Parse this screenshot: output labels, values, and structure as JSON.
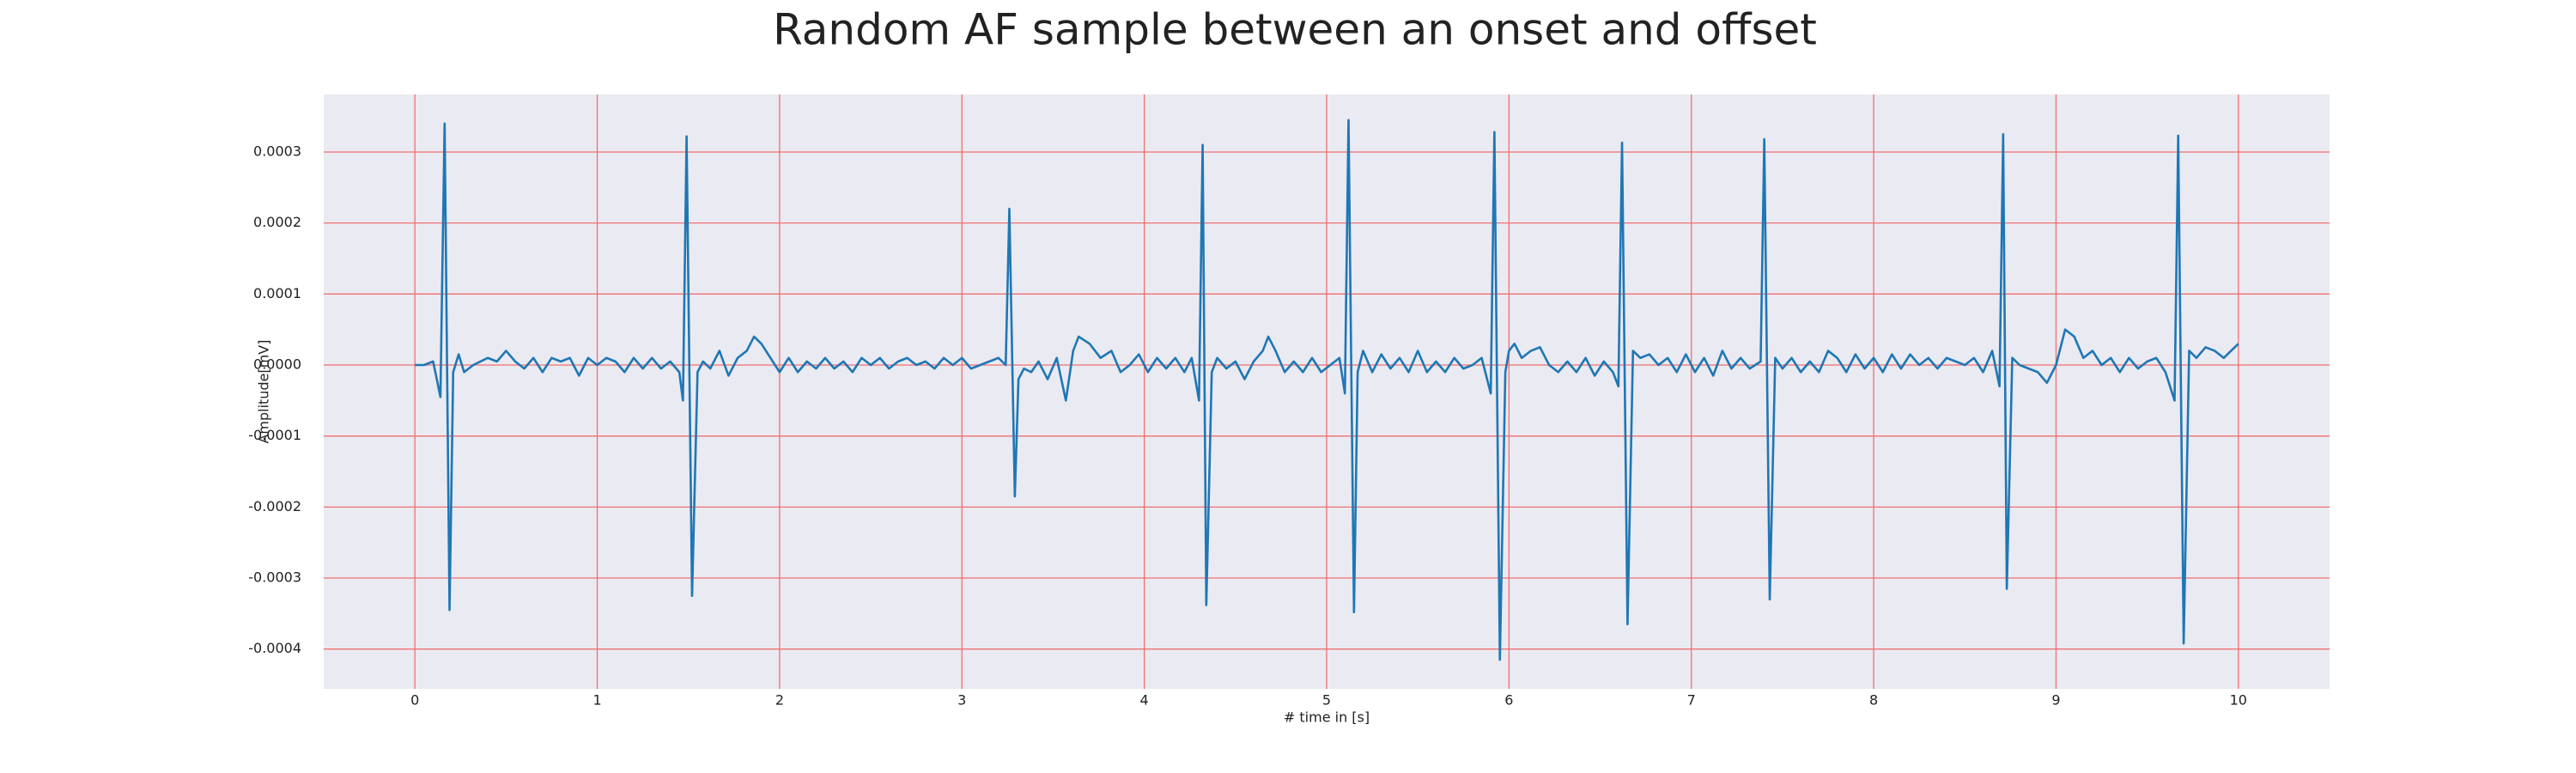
{
  "chart_data": {
    "type": "line",
    "title": "Random AF sample between an onset and offset",
    "xlabel": "# time in [s]",
    "ylabel": "Amplitude[mV]",
    "color": "#1f77b4",
    "grid": true,
    "xlim": [
      -0.5,
      10.5
    ],
    "xticks": [
      0,
      1,
      2,
      3,
      4,
      5,
      6,
      7,
      8,
      9,
      10
    ],
    "ylim": [
      -0.000456,
      0.000381
    ],
    "yticks": [
      -0.0004,
      -0.0003,
      -0.0002,
      -0.0001,
      {
        "value": 0,
        "label": "0.0000"
      },
      0.0001,
      0.0002,
      0.0003
    ],
    "x": [
      0,
      0.05,
      0.1,
      0.12,
      0.14,
      0.163,
      0.19,
      0.21,
      0.24,
      0.27,
      0.32,
      0.4,
      0.45,
      0.5,
      0.55,
      0.6,
      0.65,
      0.7,
      0.75,
      0.8,
      0.85,
      0.9,
      0.95,
      1.0,
      1.05,
      1.1,
      1.15,
      1.2,
      1.25,
      1.3,
      1.35,
      1.4,
      1.45,
      1.47,
      1.49,
      1.52,
      1.55,
      1.58,
      1.62,
      1.67,
      1.72,
      1.77,
      1.82,
      1.86,
      1.9,
      1.95,
      2.0,
      2.05,
      2.1,
      2.15,
      2.2,
      2.25,
      2.3,
      2.35,
      2.4,
      2.45,
      2.5,
      2.55,
      2.6,
      2.65,
      2.7,
      2.75,
      2.8,
      2.85,
      2.9,
      2.95,
      3.0,
      3.05,
      3.1,
      3.15,
      3.2,
      3.24,
      3.26,
      3.29,
      3.31,
      3.34,
      3.38,
      3.42,
      3.47,
      3.52,
      3.57,
      3.61,
      3.64,
      3.7,
      3.76,
      3.82,
      3.87,
      3.92,
      3.97,
      4.02,
      4.07,
      4.12,
      4.17,
      4.22,
      4.26,
      4.3,
      4.32,
      4.34,
      4.37,
      4.4,
      4.45,
      4.5,
      4.55,
      4.6,
      4.65,
      4.68,
      4.72,
      4.77,
      4.82,
      4.87,
      4.92,
      4.97,
      5.02,
      5.07,
      5.1,
      5.12,
      5.15,
      5.17,
      5.2,
      5.25,
      5.3,
      5.35,
      5.4,
      5.45,
      5.5,
      5.55,
      5.6,
      5.65,
      5.7,
      5.75,
      5.8,
      5.85,
      5.9,
      5.92,
      5.95,
      5.98,
      6.0,
      6.03,
      6.07,
      6.12,
      6.17,
      6.22,
      6.27,
      6.32,
      6.37,
      6.42,
      6.47,
      6.52,
      6.57,
      6.6,
      6.62,
      6.65,
      6.68,
      6.72,
      6.77,
      6.82,
      6.87,
      6.92,
      6.97,
      7.02,
      7.07,
      7.12,
      7.17,
      7.22,
      7.27,
      7.32,
      7.38,
      7.4,
      7.43,
      7.46,
      7.5,
      7.55,
      7.6,
      7.65,
      7.7,
      7.75,
      7.8,
      7.85,
      7.9,
      7.95,
      8.0,
      8.05,
      8.1,
      8.15,
      8.2,
      8.25,
      8.3,
      8.35,
      8.4,
      8.45,
      8.5,
      8.55,
      8.6,
      8.65,
      8.69,
      8.71,
      8.73,
      8.76,
      8.8,
      8.85,
      8.9,
      8.95,
      9.0,
      9.05,
      9.1,
      9.15,
      9.2,
      9.25,
      9.3,
      9.35,
      9.4,
      9.45,
      9.5,
      9.55,
      9.6,
      9.65,
      9.67,
      9.7,
      9.73,
      9.77,
      9.82,
      9.87,
      9.92,
      9.96,
      10.0
    ],
    "values": [
      0,
      0,
      5e-06,
      -2e-05,
      -4.5e-05,
      0.00034,
      -0.000345,
      -1e-05,
      1.5e-05,
      -1e-05,
      0,
      1e-05,
      5e-06,
      2e-05,
      5e-06,
      -5e-06,
      1e-05,
      -1e-05,
      1e-05,
      5e-06,
      1e-05,
      -1.5e-05,
      1e-05,
      0,
      1e-05,
      5e-06,
      -1e-05,
      1e-05,
      -5e-06,
      1e-05,
      -5e-06,
      5e-06,
      -1e-05,
      -5e-05,
      0.000322,
      -0.000325,
      -1e-05,
      5e-06,
      -5e-06,
      2e-05,
      -1.5e-05,
      1e-05,
      2e-05,
      4e-05,
      3e-05,
      1e-05,
      -1e-05,
      1e-05,
      -1e-05,
      5e-06,
      -5e-06,
      1e-05,
      -5e-06,
      5e-06,
      -1e-05,
      1e-05,
      0,
      1e-05,
      -5e-06,
      5e-06,
      1e-05,
      0,
      5e-06,
      -5e-06,
      1e-05,
      0,
      1e-05,
      -5e-06,
      0,
      5e-06,
      1e-05,
      0,
      0.00022,
      -0.000185,
      -2e-05,
      -5e-06,
      -1e-05,
      5e-06,
      -2e-05,
      1e-05,
      -5e-05,
      2e-05,
      4e-05,
      3e-05,
      1e-05,
      2e-05,
      -1e-05,
      0,
      1.5e-05,
      -1e-05,
      1e-05,
      -5e-06,
      1e-05,
      -1e-05,
      1e-05,
      -5e-05,
      0.00031,
      -0.000338,
      -1e-05,
      1e-05,
      -5e-06,
      5e-06,
      -2e-05,
      5e-06,
      2e-05,
      4e-05,
      2e-05,
      -1e-05,
      5e-06,
      -1e-05,
      1e-05,
      -1e-05,
      0,
      1e-05,
      -4e-05,
      0.000345,
      -0.000348,
      -1e-05,
      2e-05,
      -1e-05,
      1.5e-05,
      -5e-06,
      1e-05,
      -1e-05,
      2e-05,
      -1e-05,
      5e-06,
      -1e-05,
      1e-05,
      -5e-06,
      0,
      1e-05,
      -4e-05,
      0.000328,
      -0.000415,
      -1e-05,
      2e-05,
      3e-05,
      1e-05,
      2e-05,
      2.5e-05,
      0,
      -1e-05,
      5e-06,
      -1e-05,
      1e-05,
      -1.5e-05,
      5e-06,
      -1e-05,
      -3e-05,
      0.000313,
      -0.000365,
      2e-05,
      1e-05,
      1.5e-05,
      0,
      1e-05,
      -1e-05,
      1.5e-05,
      -1e-05,
      1e-05,
      -1.5e-05,
      2e-05,
      -5e-06,
      1e-05,
      -5e-06,
      5e-06,
      0.000318,
      -0.00033,
      1e-05,
      -5e-06,
      1e-05,
      -1e-05,
      5e-06,
      -1e-05,
      2e-05,
      1e-05,
      -1e-05,
      1.5e-05,
      -5e-06,
      1e-05,
      -1e-05,
      1.5e-05,
      -5e-06,
      1.5e-05,
      0,
      1e-05,
      -5e-06,
      1e-05,
      5e-06,
      0,
      1e-05,
      -1e-05,
      2e-05,
      -3e-05,
      0.000325,
      -0.000315,
      1e-05,
      0,
      -5e-06,
      -1e-05,
      -2.5e-05,
      0,
      5e-05,
      4e-05,
      1e-05,
      2e-05,
      0,
      1e-05,
      -1e-05,
      1e-05,
      -5e-06,
      5e-06,
      1e-05,
      -1e-05,
      -5e-05,
      0.000323,
      -0.000392,
      2e-05,
      1e-05,
      2.5e-05,
      2e-05,
      1e-05,
      2e-05,
      3e-05
    ]
  }
}
